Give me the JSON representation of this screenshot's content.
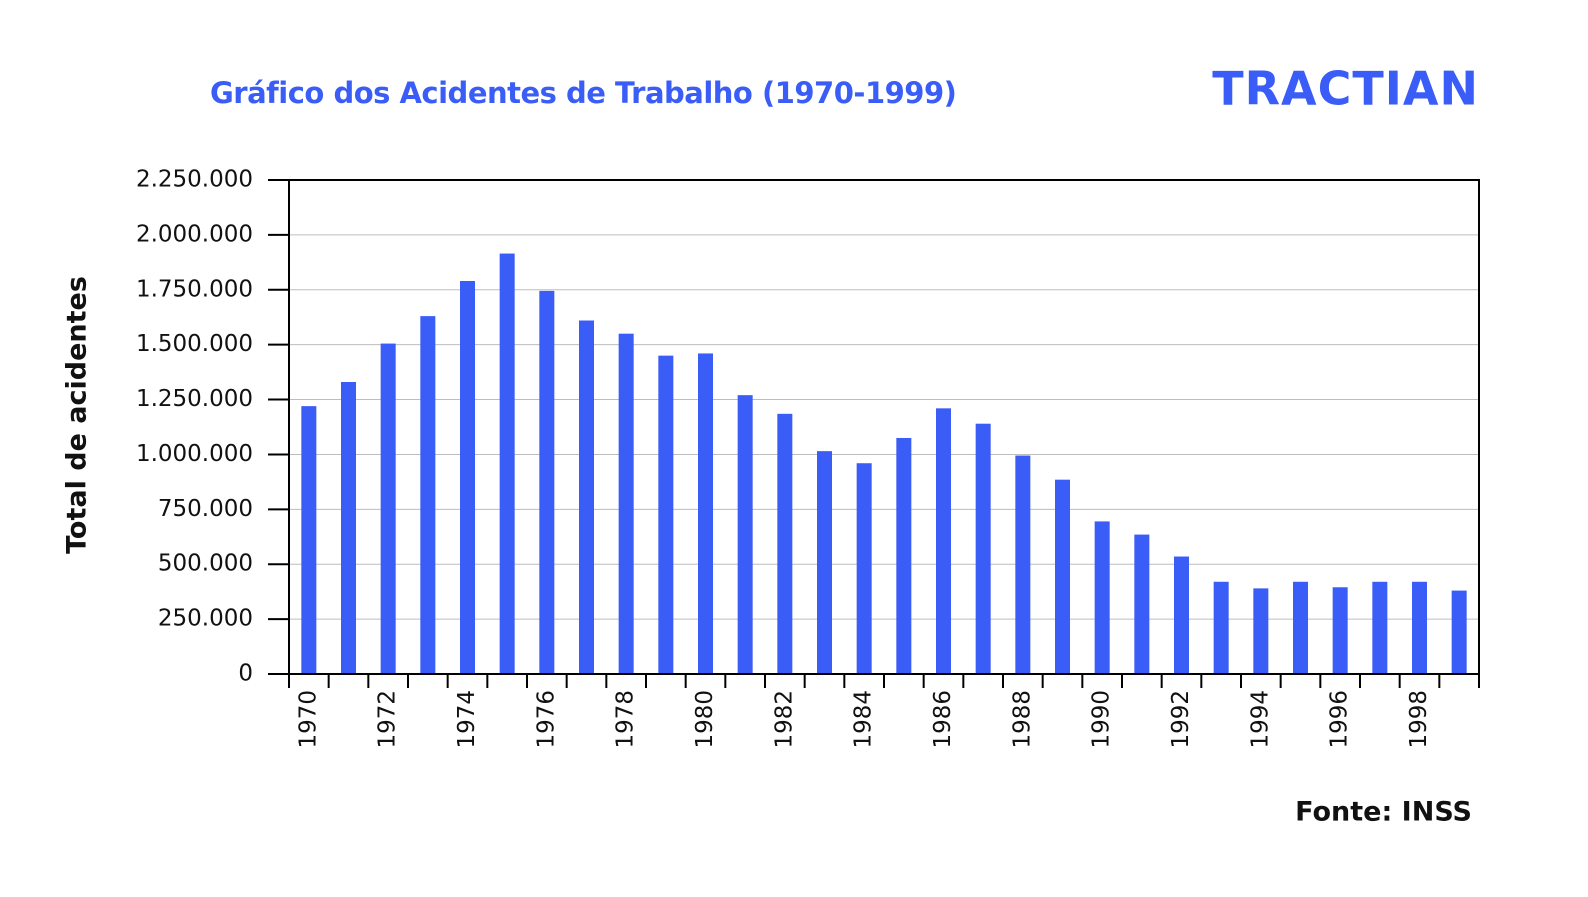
{
  "logo": "TRACTIAN",
  "chart_data": {
    "type": "bar",
    "title": "Gráfico dos Acidentes de Trabalho (1970-1999)",
    "y_label": "Total de acidentes",
    "source": "Fonte: INSS",
    "categories": [
      "1970",
      null,
      "1972",
      null,
      "1974",
      null,
      "1976",
      null,
      "1978",
      null,
      "1980",
      null,
      "1982",
      null,
      "1984",
      null,
      "1986",
      null,
      "1988",
      null,
      "1990",
      null,
      "1992",
      null,
      "1994",
      null,
      "1996",
      null,
      "1998",
      null
    ],
    "values": [
      1220000,
      1330000,
      1505000,
      1630000,
      1790000,
      1915000,
      1745000,
      1610000,
      1550000,
      1450000,
      1460000,
      1270000,
      1185000,
      1015000,
      960000,
      1075000,
      1210000,
      1140000,
      995000,
      885000,
      695000,
      635000,
      535000,
      420000,
      390000,
      420000,
      395000,
      420000,
      420000,
      380000
    ],
    "color": "#3a5cf7",
    "ylim": [
      0,
      2250000
    ],
    "yticks": [
      0,
      {
        "value": 250000,
        "label": "250.000"
      },
      {
        "value": 500000,
        "label": "500.000"
      },
      {
        "value": 750000,
        "label": "750.000"
      },
      {
        "value": 1000000,
        "label": "1.000.000"
      },
      {
        "value": 1250000,
        "label": "1.250.000"
      },
      {
        "value": 1500000,
        "label": "1.500.000"
      },
      {
        "value": 1750000,
        "label": "1.750.000"
      },
      {
        "value": 2000000,
        "label": "2.000.000"
      },
      {
        "value": 2250000,
        "label": "2.250.000"
      }
    ],
    "grid": true
  }
}
